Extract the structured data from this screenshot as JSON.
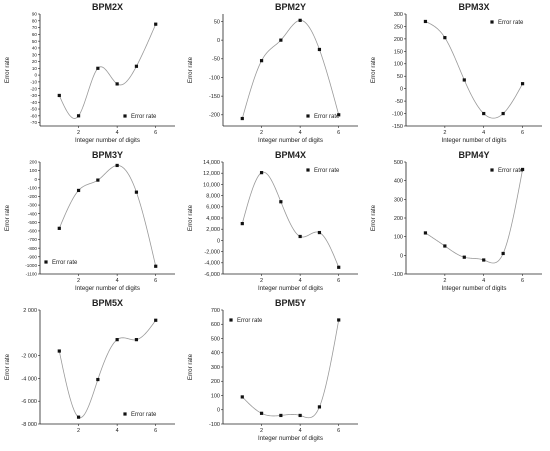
{
  "colors": {
    "curve": "#9a9a9a",
    "marker": "#111111",
    "axis": "#222222",
    "text": "#222222"
  },
  "chart_data": [
    {
      "type": "line",
      "title": "BPM2X",
      "xlabel": "Integer number of digits",
      "ylabel": "Error rate",
      "xlim": [
        0,
        7
      ],
      "ylim": [
        -75,
        90
      ],
      "xticks": [
        2,
        4,
        6
      ],
      "yticks": [
        -70,
        -60,
        -50,
        -40,
        -30,
        -20,
        -10,
        0,
        10,
        20,
        30,
        40,
        50,
        60,
        70,
        80,
        90
      ],
      "legend": "bottom-right",
      "series": [
        {
          "name": "Error rate",
          "x": [
            1,
            2,
            3,
            4,
            5,
            6
          ],
          "y": [
            -30,
            -60,
            10,
            -13,
            13,
            75
          ]
        }
      ]
    },
    {
      "type": "line",
      "title": "BPM2Y",
      "xlabel": "Integer number of digits",
      "ylabel": "Error rate",
      "xlim": [
        0,
        7
      ],
      "ylim": [
        -230,
        70
      ],
      "xticks": [
        2,
        4,
        6
      ],
      "yticks": [
        -200,
        -150,
        -100,
        -50,
        0,
        50
      ],
      "legend": "bottom-right",
      "series": [
        {
          "name": "Error rate",
          "x": [
            1,
            2,
            3,
            4,
            5,
            6
          ],
          "y": [
            -210,
            -55,
            0,
            53,
            -25,
            -200
          ]
        }
      ]
    },
    {
      "type": "line",
      "title": "BPM3X",
      "xlabel": "Integer number of digits",
      "ylabel": "Error rate",
      "xlim": [
        0,
        7
      ],
      "ylim": [
        -150,
        300
      ],
      "xticks": [
        2,
        4,
        6
      ],
      "yticks": [
        -150,
        -100,
        -50,
        0,
        50,
        100,
        150,
        200,
        250,
        300
      ],
      "legend": "top-right",
      "series": [
        {
          "name": "Error rate",
          "x": [
            1,
            2,
            3,
            4,
            5,
            6
          ],
          "y": [
            270,
            205,
            35,
            -100,
            -100,
            20
          ]
        }
      ]
    },
    {
      "type": "line",
      "title": "BPM3Y",
      "xlabel": "Integer number of digits",
      "ylabel": "Error rate",
      "xlim": [
        0,
        7
      ],
      "ylim": [
        -1100,
        200
      ],
      "xticks": [
        2,
        4,
        6
      ],
      "yticks": [
        -1100,
        -1000,
        -900,
        -800,
        -700,
        -600,
        -500,
        -400,
        -300,
        -200,
        -100,
        0,
        100,
        200
      ],
      "legend": "bottom-left",
      "series": [
        {
          "name": "Error rate",
          "x": [
            1,
            2,
            3,
            4,
            5,
            6
          ],
          "y": [
            -570,
            -130,
            -10,
            160,
            -150,
            -1010
          ]
        }
      ]
    },
    {
      "type": "line",
      "title": "BPM4X",
      "xlabel": "Integer number of digits",
      "ylabel": "Error rate",
      "xlim": [
        0,
        7
      ],
      "ylim": [
        -6000,
        14000
      ],
      "xticks": [
        2,
        4,
        6
      ],
      "yticks": [
        -6000,
        -4000,
        -2000,
        0,
        2000,
        4000,
        6000,
        8000,
        10000,
        12000,
        14000
      ],
      "ytick_labels": [
        "-6,000",
        "-4,000",
        "-2,000",
        "0",
        "2,000",
        "4,000",
        "6,000",
        "8,000",
        "10,000",
        "12,000",
        "14,000"
      ],
      "legend": "top-right",
      "series": [
        {
          "name": "Error rate",
          "x": [
            1,
            2,
            3,
            4,
            5,
            6
          ],
          "y": [
            3000,
            12100,
            6900,
            700,
            1400,
            -4800
          ]
        }
      ]
    },
    {
      "type": "line",
      "title": "BPM4Y",
      "xlabel": "Integer number of digits",
      "ylabel": "Error rate",
      "xlim": [
        0,
        7
      ],
      "ylim": [
        -100,
        500
      ],
      "xticks": [
        2,
        4,
        6
      ],
      "yticks": [
        -100,
        0,
        100,
        200,
        300,
        400,
        500
      ],
      "legend": "top-right",
      "series": [
        {
          "name": "Error rate",
          "x": [
            1,
            2,
            3,
            4,
            5,
            6
          ],
          "y": [
            120,
            50,
            -10,
            -25,
            10,
            460
          ]
        }
      ]
    },
    {
      "type": "line",
      "title": "BPM5X",
      "xlabel": "",
      "ylabel": "Error rate",
      "xlim": [
        0,
        7
      ],
      "ylim": [
        -8000,
        2000
      ],
      "xticks": [
        2,
        4,
        6
      ],
      "yticks": [
        -8000,
        -6000,
        -4000,
        -2000,
        2000
      ],
      "ytick_labels": [
        "-8 000",
        "-6 000",
        "-4 000",
        "-2 000",
        "2 000"
      ],
      "legend": "bottom-right",
      "series": [
        {
          "name": "Error rate",
          "x": [
            1,
            2,
            3,
            4,
            5,
            6
          ],
          "y": [
            -1600,
            -7400,
            -4100,
            -600,
            -600,
            1100
          ]
        }
      ]
    },
    {
      "type": "line",
      "title": "BPM5Y",
      "xlabel": "Integer number of digits",
      "ylabel": "Error rate",
      "xlim": [
        0,
        7
      ],
      "ylim": [
        -100,
        700
      ],
      "xticks": [
        2,
        4,
        6
      ],
      "yticks": [
        -100,
        0,
        100,
        200,
        300,
        400,
        500,
        600,
        700
      ],
      "legend": "top-left",
      "series": [
        {
          "name": "Error rate",
          "x": [
            1,
            2,
            3,
            4,
            5,
            6
          ],
          "y": [
            90,
            -25,
            -40,
            -40,
            20,
            630
          ]
        }
      ]
    }
  ]
}
